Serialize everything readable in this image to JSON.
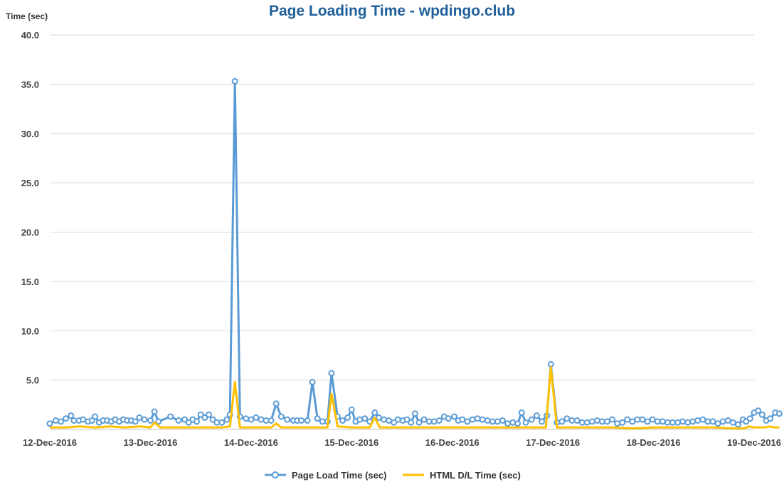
{
  "chart_data": {
    "type": "line",
    "title": "Page Loading Time - wpdingo.club",
    "xlabel": "",
    "ylabel": "Time (sec)",
    "ylim": [
      0,
      40
    ],
    "y_ticks": [
      "5.0",
      "10.0",
      "15.0",
      "20.0",
      "25.0",
      "30.0",
      "35.0",
      "40.0"
    ],
    "x_range": [
      0,
      7
    ],
    "x_ticks": [
      "12-Dec-2016",
      "13-Dec-2016",
      "14-Dec-2016",
      "15-Dec-2016",
      "16-Dec-2016",
      "17-Dec-2016",
      "18-Dec-2016",
      "19-Dec-2016"
    ],
    "grid": true,
    "legend_position": "bottom",
    "series": [
      {
        "name": "Page Load Time (sec)",
        "color": "#5b9bd5",
        "markers": true,
        "points": [
          [
            0.0,
            0.6
          ],
          [
            0.06,
            0.9
          ],
          [
            0.11,
            0.8
          ],
          [
            0.16,
            1.1
          ],
          [
            0.21,
            1.4
          ],
          [
            0.24,
            0.9
          ],
          [
            0.29,
            0.9
          ],
          [
            0.33,
            1.0
          ],
          [
            0.38,
            0.8
          ],
          [
            0.42,
            0.9
          ],
          [
            0.45,
            1.3
          ],
          [
            0.49,
            0.7
          ],
          [
            0.53,
            0.9
          ],
          [
            0.57,
            0.9
          ],
          [
            0.61,
            0.8
          ],
          [
            0.65,
            1.0
          ],
          [
            0.69,
            0.8
          ],
          [
            0.73,
            1.0
          ],
          [
            0.77,
            0.9
          ],
          [
            0.81,
            0.9
          ],
          [
            0.85,
            0.8
          ],
          [
            0.89,
            1.2
          ],
          [
            0.94,
            1.0
          ],
          [
            1.0,
            0.9
          ],
          [
            1.04,
            1.8
          ],
          [
            1.08,
            0.8
          ],
          [
            1.2,
            1.3
          ],
          [
            1.28,
            0.9
          ],
          [
            1.34,
            1.0
          ],
          [
            1.38,
            0.7
          ],
          [
            1.42,
            1.0
          ],
          [
            1.46,
            0.8
          ],
          [
            1.5,
            1.5
          ],
          [
            1.54,
            1.2
          ],
          [
            1.58,
            1.5
          ],
          [
            1.62,
            1.0
          ],
          [
            1.66,
            0.7
          ],
          [
            1.71,
            0.7
          ],
          [
            1.76,
            1.0
          ],
          [
            1.79,
            1.5
          ],
          [
            1.84,
            35.3
          ],
          [
            1.89,
            1.3
          ],
          [
            1.95,
            1.1
          ],
          [
            2.0,
            1.0
          ],
          [
            2.05,
            1.2
          ],
          [
            2.1,
            1.0
          ],
          [
            2.15,
            0.9
          ],
          [
            2.2,
            0.9
          ],
          [
            2.25,
            2.6
          ],
          [
            2.3,
            1.3
          ],
          [
            2.36,
            1.0
          ],
          [
            2.42,
            0.9
          ],
          [
            2.46,
            0.9
          ],
          [
            2.5,
            0.9
          ],
          [
            2.56,
            0.9
          ],
          [
            2.61,
            4.8
          ],
          [
            2.66,
            1.1
          ],
          [
            2.71,
            0.8
          ],
          [
            2.76,
            0.8
          ],
          [
            2.8,
            5.7
          ],
          [
            2.86,
            1.3
          ],
          [
            2.91,
            0.9
          ],
          [
            2.96,
            1.2
          ],
          [
            3.0,
            2.0
          ],
          [
            3.04,
            0.8
          ],
          [
            3.08,
            1.0
          ],
          [
            3.13,
            1.1
          ],
          [
            3.18,
            0.8
          ],
          [
            3.23,
            1.7
          ],
          [
            3.27,
            1.2
          ],
          [
            3.32,
            1.0
          ],
          [
            3.37,
            0.9
          ],
          [
            3.42,
            0.7
          ],
          [
            3.46,
            1.0
          ],
          [
            3.51,
            0.9
          ],
          [
            3.55,
            1.0
          ],
          [
            3.59,
            0.7
          ],
          [
            3.63,
            1.6
          ],
          [
            3.67,
            0.7
          ],
          [
            3.72,
            1.0
          ],
          [
            3.77,
            0.8
          ],
          [
            3.82,
            0.8
          ],
          [
            3.87,
            0.9
          ],
          [
            3.92,
            1.3
          ],
          [
            3.96,
            1.1
          ],
          [
            4.02,
            1.3
          ],
          [
            4.06,
            0.9
          ],
          [
            4.1,
            1.0
          ],
          [
            4.15,
            0.8
          ],
          [
            4.2,
            1.0
          ],
          [
            4.25,
            1.1
          ],
          [
            4.3,
            1.0
          ],
          [
            4.35,
            0.9
          ],
          [
            4.4,
            0.8
          ],
          [
            4.45,
            0.8
          ],
          [
            4.5,
            0.9
          ],
          [
            4.55,
            0.6
          ],
          [
            4.6,
            0.7
          ],
          [
            4.65,
            0.6
          ],
          [
            4.69,
            1.7
          ],
          [
            4.73,
            0.7
          ],
          [
            4.79,
            1.0
          ],
          [
            4.84,
            1.4
          ],
          [
            4.89,
            0.8
          ],
          [
            4.94,
            1.4
          ],
          [
            4.98,
            6.6
          ],
          [
            5.04,
            0.7
          ],
          [
            5.09,
            0.8
          ],
          [
            5.14,
            1.1
          ],
          [
            5.19,
            0.9
          ],
          [
            5.24,
            0.9
          ],
          [
            5.29,
            0.7
          ],
          [
            5.34,
            0.7
          ],
          [
            5.39,
            0.8
          ],
          [
            5.44,
            0.9
          ],
          [
            5.49,
            0.8
          ],
          [
            5.54,
            0.8
          ],
          [
            5.59,
            1.0
          ],
          [
            5.64,
            0.6
          ],
          [
            5.69,
            0.7
          ],
          [
            5.74,
            1.0
          ],
          [
            5.79,
            0.8
          ],
          [
            5.84,
            1.0
          ],
          [
            5.89,
            1.0
          ],
          [
            5.94,
            0.8
          ],
          [
            5.99,
            1.0
          ],
          [
            6.04,
            0.8
          ],
          [
            6.09,
            0.8
          ],
          [
            6.14,
            0.7
          ],
          [
            6.19,
            0.7
          ],
          [
            6.24,
            0.7
          ],
          [
            6.29,
            0.8
          ],
          [
            6.34,
            0.7
          ],
          [
            6.39,
            0.8
          ],
          [
            6.44,
            0.9
          ],
          [
            6.49,
            1.0
          ],
          [
            6.54,
            0.8
          ],
          [
            6.59,
            0.8
          ],
          [
            6.64,
            0.6
          ],
          [
            6.69,
            0.8
          ],
          [
            6.74,
            0.9
          ],
          [
            6.79,
            0.7
          ],
          [
            6.84,
            0.5
          ],
          [
            6.89,
            1.0
          ],
          [
            6.92,
            0.8
          ],
          [
            6.96,
            1.1
          ],
          [
            7.0,
            1.7
          ],
          [
            7.04,
            1.9
          ],
          [
            7.08,
            1.5
          ],
          [
            7.12,
            0.9
          ],
          [
            7.16,
            1.1
          ],
          [
            7.21,
            1.7
          ],
          [
            7.25,
            1.6
          ]
        ]
      },
      {
        "name": "HTML D/L Time (sec)",
        "color": "#ffc000",
        "markers": false,
        "points": [
          [
            0.0,
            0.2
          ],
          [
            0.15,
            0.2
          ],
          [
            0.3,
            0.3
          ],
          [
            0.45,
            0.2
          ],
          [
            0.6,
            0.3
          ],
          [
            0.75,
            0.2
          ],
          [
            0.9,
            0.3
          ],
          [
            1.0,
            0.2
          ],
          [
            1.04,
            0.7
          ],
          [
            1.1,
            0.2
          ],
          [
            1.3,
            0.2
          ],
          [
            1.5,
            0.2
          ],
          [
            1.7,
            0.2
          ],
          [
            1.79,
            0.3
          ],
          [
            1.84,
            4.8
          ],
          [
            1.89,
            0.2
          ],
          [
            2.1,
            0.2
          ],
          [
            2.2,
            0.2
          ],
          [
            2.25,
            0.6
          ],
          [
            2.3,
            0.2
          ],
          [
            2.5,
            0.2
          ],
          [
            2.7,
            0.2
          ],
          [
            2.76,
            0.2
          ],
          [
            2.8,
            3.6
          ],
          [
            2.86,
            0.3
          ],
          [
            3.0,
            0.2
          ],
          [
            3.18,
            0.2
          ],
          [
            3.23,
            1.2
          ],
          [
            3.28,
            0.2
          ],
          [
            3.5,
            0.2
          ],
          [
            3.7,
            0.2
          ],
          [
            4.0,
            0.2
          ],
          [
            4.3,
            0.2
          ],
          [
            4.6,
            0.2
          ],
          [
            4.93,
            0.2
          ],
          [
            4.98,
            6.3
          ],
          [
            5.04,
            0.2
          ],
          [
            5.3,
            0.2
          ],
          [
            5.6,
            0.2
          ],
          [
            5.8,
            0.1
          ],
          [
            6.0,
            0.2
          ],
          [
            6.3,
            0.2
          ],
          [
            6.6,
            0.2
          ],
          [
            6.8,
            0.1
          ],
          [
            6.9,
            0.1
          ],
          [
            6.95,
            0.3
          ],
          [
            7.0,
            0.2
          ],
          [
            7.1,
            0.2
          ],
          [
            7.15,
            0.3
          ],
          [
            7.2,
            0.2
          ],
          [
            7.25,
            0.2
          ]
        ]
      }
    ]
  }
}
